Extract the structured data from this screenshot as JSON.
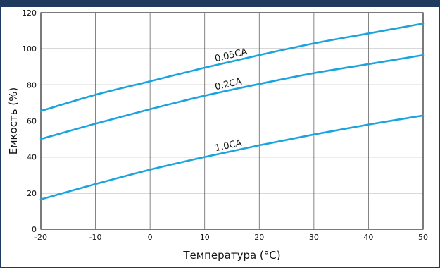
{
  "chart_data": {
    "type": "line",
    "title": "",
    "xlabel": "Температура (°C)",
    "ylabel": "Емкость (%)",
    "xlim": [
      -20,
      50
    ],
    "ylim": [
      0,
      120
    ],
    "x_ticks": [
      "-20",
      "-10",
      "0",
      "10",
      "20",
      "30",
      "40",
      "50"
    ],
    "y_ticks": [
      "0",
      "20",
      "40",
      "60",
      "80",
      "100",
      "120"
    ],
    "grid": true,
    "legend": "none",
    "line_color": "#1ba3e0",
    "series": [
      {
        "name": "0.05CA",
        "x": [
          -20,
          -10,
          0,
          10,
          20,
          30,
          40,
          50
        ],
        "values": [
          65.5,
          74.5,
          82.0,
          89.5,
          96.5,
          103.0,
          108.5,
          114.0
        ]
      },
      {
        "name": "0.2CA",
        "x": [
          -20,
          -10,
          0,
          10,
          20,
          30,
          40,
          50
        ],
        "values": [
          50.0,
          58.5,
          66.5,
          74.0,
          80.5,
          86.5,
          91.5,
          96.5
        ]
      },
      {
        "name": "1.0CA",
        "x": [
          -20,
          -10,
          0,
          10,
          20,
          30,
          40,
          50
        ],
        "values": [
          16.5,
          25.0,
          33.0,
          40.0,
          46.5,
          52.5,
          58.0,
          63.0
        ]
      }
    ]
  }
}
